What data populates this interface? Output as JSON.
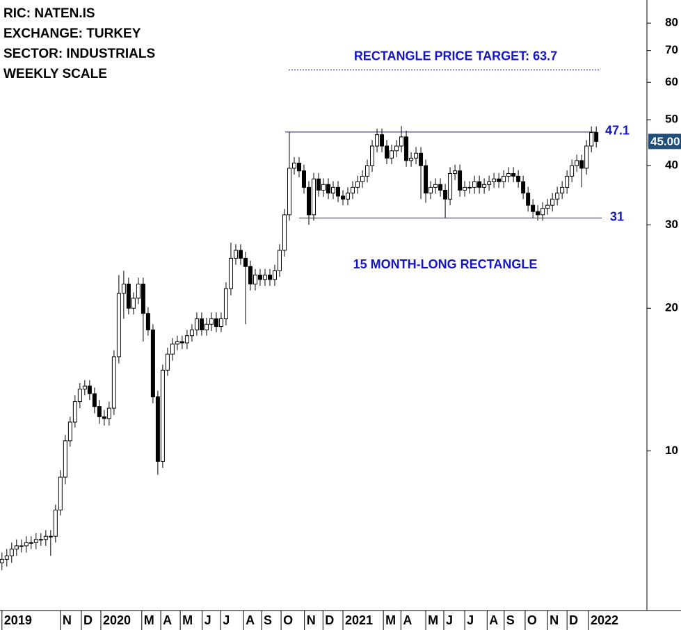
{
  "chart_data": {
    "type": "candlestick",
    "info": [
      "RIC: NATEN.IS",
      "EXCHANGE: TURKEY",
      "SECTOR: INDUSTRIALS",
      "WEEKLY SCALE"
    ],
    "log_y": true,
    "ylim": [
      4.6,
      89.5
    ],
    "yticks": [
      10,
      20,
      30,
      40,
      50,
      60,
      70,
      80
    ],
    "xlim": [
      -0.4,
      132.4
    ],
    "xticks": [
      {
        "value": 0,
        "label": "2019"
      },
      {
        "value": 12,
        "label": "N"
      },
      {
        "value": 16.3,
        "label": "D"
      },
      {
        "value": 20.3,
        "label": "2020"
      },
      {
        "value": 28.7,
        "label": "M"
      },
      {
        "value": 32.6,
        "label": "A"
      },
      {
        "value": 36.6,
        "label": "M"
      },
      {
        "value": 41.1,
        "label": "J"
      },
      {
        "value": 44.9,
        "label": "J"
      },
      {
        "value": 49.6,
        "label": "A"
      },
      {
        "value": 53.3,
        "label": "S"
      },
      {
        "value": 57.3,
        "label": "O"
      },
      {
        "value": 62.1,
        "label": "N"
      },
      {
        "value": 65.9,
        "label": "D"
      },
      {
        "value": 70,
        "label": "2021"
      },
      {
        "value": 78.3,
        "label": "M"
      },
      {
        "value": 81.9,
        "label": "A"
      },
      {
        "value": 87,
        "label": "M"
      },
      {
        "value": 90.7,
        "label": "J"
      },
      {
        "value": 95,
        "label": "J"
      },
      {
        "value": 99.6,
        "label": "A"
      },
      {
        "value": 103.1,
        "label": "S"
      },
      {
        "value": 107.4,
        "label": "O"
      },
      {
        "value": 112,
        "label": "N"
      },
      {
        "value": 116,
        "label": "D"
      },
      {
        "value": 120.4,
        "label": "2022"
      }
    ],
    "open": [
      5.8,
      5.9,
      6.0,
      6.2,
      6.3,
      6.3,
      6.4,
      6.4,
      6.5,
      6.5,
      6.6,
      6.6,
      7.5,
      8.8,
      10.5,
      11.5,
      12.7,
      13.5,
      13.7,
      13.2,
      12.4,
      11.8,
      11.7,
      12.3,
      15.8,
      21.5,
      22.5,
      20,
      21,
      22.5,
      19.5,
      18,
      13,
      9.5,
      14.8,
      16,
      16.8,
      17,
      16.9,
      17.5,
      18,
      19,
      18,
      18.5,
      19,
      18.3,
      19,
      22,
      25.5,
      26.5,
      25.5,
      24.5,
      22.5,
      23.5,
      23,
      23.5,
      23,
      24,
      26.5,
      31.5,
      39.5,
      40.5,
      39,
      36,
      31.5,
      37.5,
      35.5,
      36.5,
      35,
      36,
      34.5,
      34,
      35,
      36,
      37,
      38,
      40,
      44,
      46.5,
      44,
      41.5,
      43,
      44,
      46,
      41,
      41.5,
      42.5,
      40,
      35,
      36,
      36.5,
      35.5,
      34,
      38.5,
      39,
      35.5,
      36,
      36,
      37,
      36,
      36.5,
      37,
      37.5,
      37,
      38,
      38.5,
      38,
      37,
      35,
      33,
      32,
      31.5,
      32.5,
      33,
      34,
      35,
      36,
      38,
      40,
      41,
      39.5,
      44,
      47
    ],
    "high": [
      6.1,
      6.2,
      6.4,
      6.5,
      6.5,
      6.6,
      6.6,
      6.7,
      6.7,
      6.8,
      6.8,
      7.7,
      9.1,
      10.8,
      11.8,
      13.1,
      13.9,
      14.1,
      14.1,
      13.6,
      12.8,
      12.2,
      12.7,
      16.3,
      23.5,
      24,
      23.2,
      21.6,
      23.2,
      23.2,
      20.1,
      18.5,
      13.4,
      15.2,
      16.5,
      17.3,
      17.5,
      17.5,
      18,
      18.5,
      19.6,
      19.6,
      19.1,
      19.6,
      19.6,
      19.6,
      22.7,
      27.5,
      27.3,
      27.3,
      26.3,
      25.2,
      24.2,
      24.2,
      24.2,
      24.2,
      24.7,
      27.3,
      32.4,
      47.1,
      41.7,
      41.7,
      40.2,
      37.1,
      38.6,
      38.6,
      37.6,
      37.6,
      37.1,
      37.1,
      35.5,
      36,
      37.1,
      38.1,
      39.1,
      41.2,
      45.3,
      47.9,
      47.9,
      45.3,
      44.3,
      45.3,
      48.5,
      47.4,
      42.7,
      43.8,
      43.8,
      41.2,
      37.1,
      37.6,
      37.6,
      36.6,
      39.7,
      40.2,
      40.2,
      37.1,
      37.1,
      38.1,
      38.1,
      37.6,
      38.1,
      38.6,
      38.6,
      39.1,
      39.7,
      39.7,
      39.1,
      38.1,
      36.1,
      34,
      33,
      33.5,
      34,
      35,
      36.1,
      37.1,
      39.1,
      41.2,
      42.2,
      42.2,
      45.3,
      48.4,
      48.4
    ],
    "low": [
      5.6,
      5.7,
      5.8,
      6.0,
      6.1,
      6.1,
      6.2,
      6.2,
      6.3,
      6.3,
      6.0,
      6.4,
      7.3,
      8.5,
      10.2,
      11.2,
      12.3,
      13.1,
      12.8,
      12.0,
      11.4,
      11.3,
      11.3,
      11.9,
      15.3,
      19,
      19.4,
      19.4,
      20.4,
      17,
      17.5,
      12.6,
      8.9,
      9.2,
      14.4,
      15.5,
      16.3,
      16.4,
      16.4,
      17,
      17.5,
      17.5,
      17.5,
      17.9,
      17.8,
      17.8,
      18.4,
      21.3,
      24.7,
      24.7,
      18.5,
      21.8,
      21.8,
      22.3,
      22.3,
      22.3,
      22.3,
      23.3,
      25.7,
      30.6,
      38.3,
      37.8,
      34.9,
      30,
      30.6,
      34.4,
      34.4,
      34,
      34,
      33.5,
      33,
      33,
      34,
      34.9,
      35.9,
      36.9,
      38.8,
      42.7,
      42.7,
      40.3,
      40.3,
      41.7,
      42.7,
      39.8,
      39.8,
      40.3,
      34,
      33.4,
      34,
      34.9,
      34.4,
      31,
      33,
      37.3,
      34.4,
      34.4,
      34.9,
      34.9,
      34.9,
      34.9,
      35.4,
      35.9,
      35.9,
      35.9,
      36.9,
      36.9,
      35.9,
      34,
      32,
      31,
      30.6,
      30.6,
      31.5,
      32,
      33,
      34,
      34.9,
      36.9,
      38.8,
      36,
      38.3,
      42.7,
      43.7
    ],
    "close": [
      5.9,
      6.0,
      6.2,
      6.3,
      6.3,
      6.4,
      6.4,
      6.5,
      6.5,
      6.6,
      6.6,
      7.5,
      8.8,
      10.5,
      11.5,
      12.7,
      13.5,
      13.7,
      13.2,
      12.4,
      11.8,
      11.7,
      12.3,
      15.8,
      21.5,
      22.5,
      20,
      21,
      22.5,
      19.5,
      18,
      13,
      9.5,
      14.8,
      16,
      16.8,
      17,
      16.9,
      17.5,
      18,
      19,
      18,
      18.5,
      19,
      18.3,
      19,
      22,
      25.5,
      26.5,
      25.5,
      24.5,
      22.5,
      23.5,
      23,
      23.5,
      23,
      24,
      26.5,
      31.5,
      39.5,
      40.5,
      39,
      36,
      31.5,
      37.5,
      35.5,
      36.5,
      35,
      36,
      34.5,
      34,
      35,
      36,
      37,
      38,
      40,
      44,
      46.5,
      44,
      41.5,
      43,
      44,
      46,
      41,
      41.5,
      42.5,
      40,
      35,
      36,
      36.5,
      35.5,
      34,
      38.5,
      39,
      35.5,
      36,
      36,
      37,
      36,
      36.5,
      37,
      37.5,
      37,
      38,
      38.5,
      38,
      37,
      35,
      33,
      32,
      31.5,
      32.5,
      33,
      34,
      35,
      36,
      38,
      40,
      41,
      39.5,
      44,
      47,
      45
    ],
    "up_color": "#ffffff",
    "down_color": "#000000",
    "levels": [
      {
        "value": 47.1,
        "label": "47.1"
      },
      {
        "value": 31,
        "label": "31"
      }
    ],
    "target": {
      "value": 63.7,
      "label": "RECTANGLE PRICE TARGET: 63.7"
    },
    "pattern_label": "15 MONTH-LONG RECTANGLE",
    "last_price": {
      "value": 45,
      "label": "45.00"
    },
    "annotation_color": "#1515c8"
  }
}
